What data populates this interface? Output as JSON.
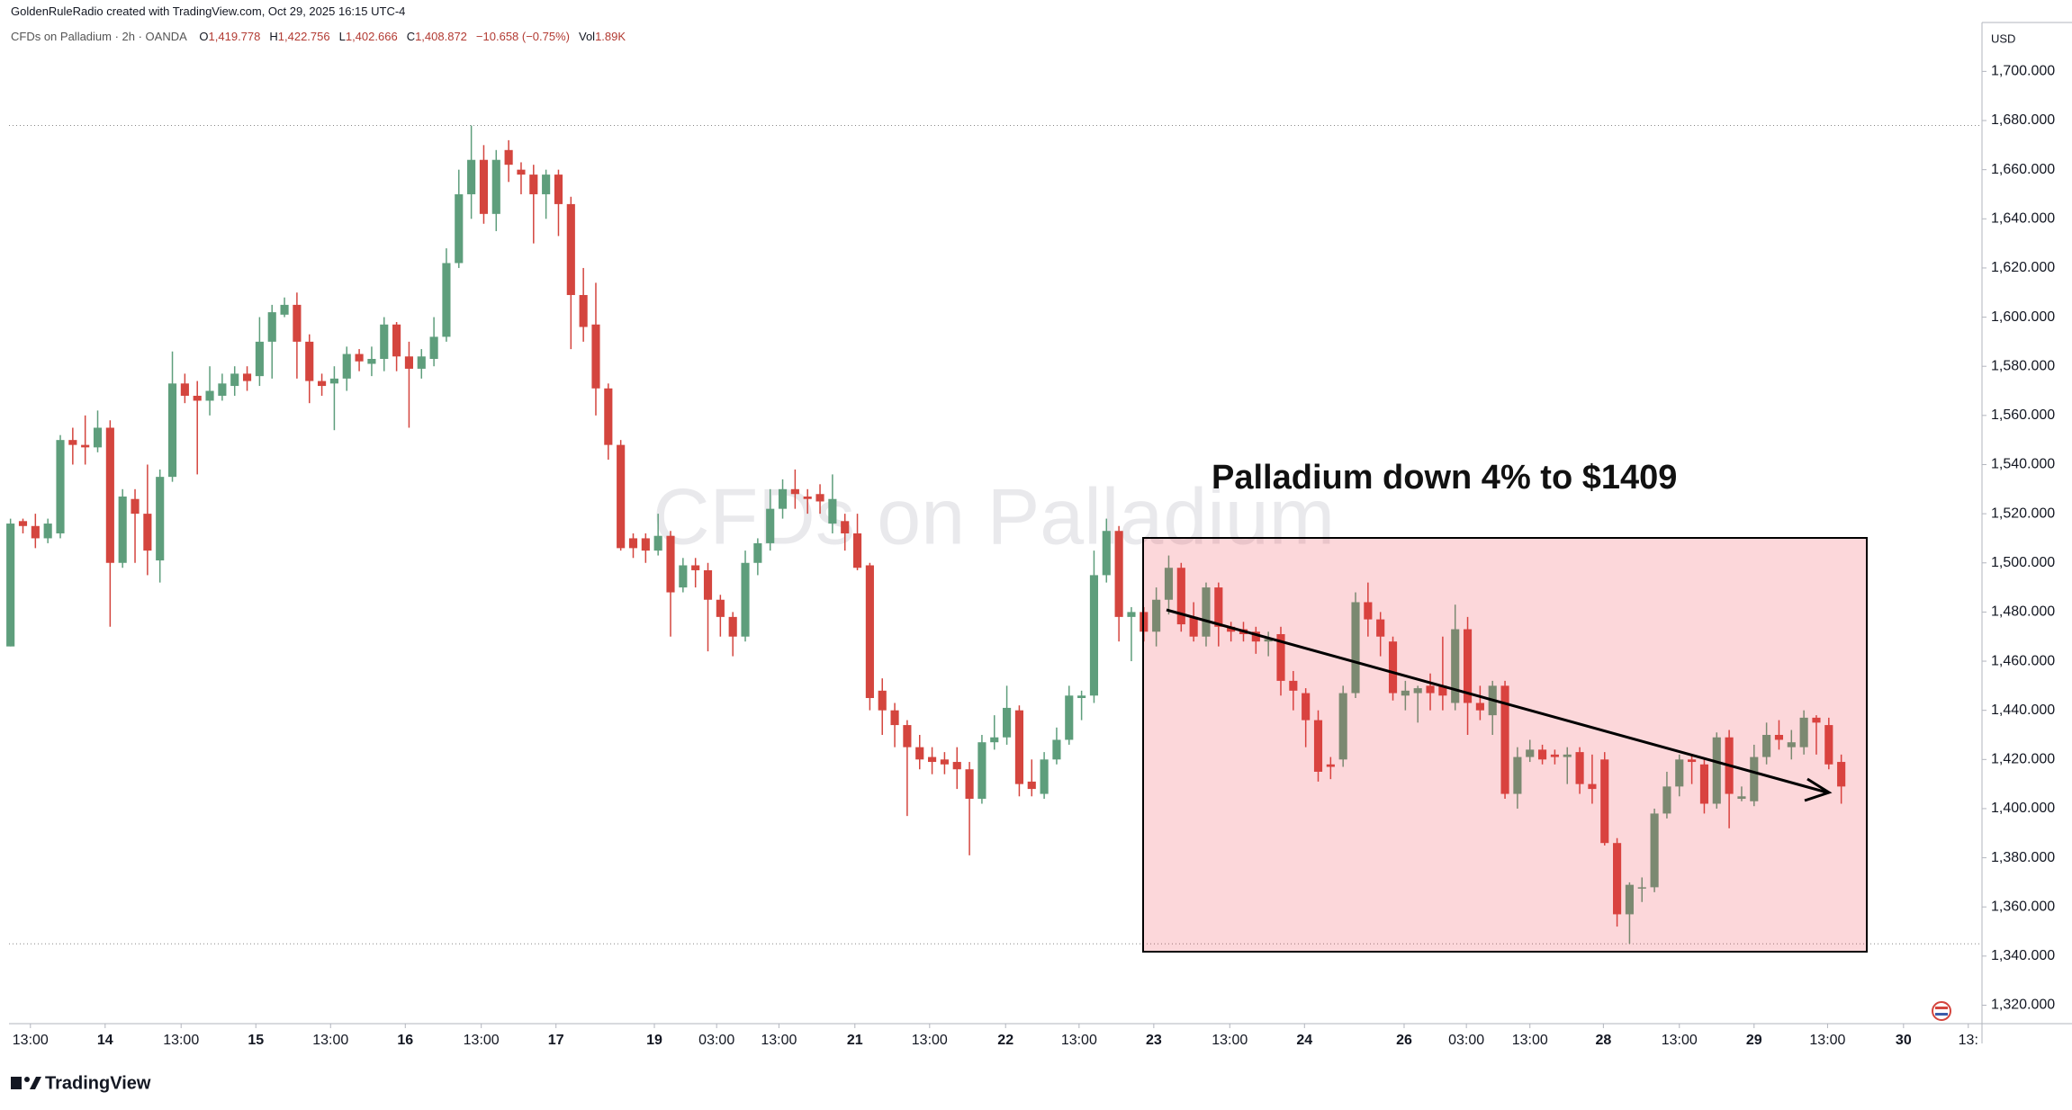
{
  "header": {
    "credit": "GoldenRuleRadio created with TradingView.com, Oct 29, 2025 16:15 UTC-4",
    "symbol": "CFDs on Palladium · 2h · OANDA",
    "ohlc": [
      {
        "key": "O",
        "value": "1,419.778"
      },
      {
        "key": "H",
        "value": "1,422.756"
      },
      {
        "key": "L",
        "value": "1,402.666"
      },
      {
        "key": "C",
        "value": "1,408.872"
      }
    ],
    "change": "−10.658 (−0.75%)",
    "volume_key": "Vol",
    "volume": "1.89K"
  },
  "watermark": "CFDs on Palladium",
  "annotation": "Palladium down 4% to $1409",
  "footer": {
    "brand": "TradingView"
  },
  "chart_data": {
    "type": "candlestick",
    "currency": "USD",
    "up_color": "#5e9e7c",
    "down_color": "#d4453e",
    "open": [
      1466,
      1517,
      1515,
      1510,
      1512,
      1550,
      1548,
      1547,
      1555,
      1500,
      1526,
      1520,
      1501,
      1535,
      1573,
      1568,
      1566,
      1568,
      1572,
      1577,
      1576,
      1590,
      1601,
      1605,
      1590,
      1574,
      1573,
      1575,
      1585,
      1581,
      1583,
      1597,
      1584,
      1579,
      1583,
      1592,
      1622,
      1650,
      1664,
      1642,
      1668,
      1660,
      1658,
      1650,
      1658,
      1646,
      1609,
      1597,
      1571,
      1548,
      1510,
      1510,
      1505,
      1511,
      1490,
      1499,
      1497,
      1485,
      1478,
      1470,
      1500,
      1508,
      1522,
      1530,
      1527,
      1528,
      1516,
      1517,
      1512,
      1499,
      1448,
      1440,
      1434,
      1425,
      1421,
      1420,
      1419,
      1416,
      1404,
      1427,
      1429,
      1440,
      1411,
      1406,
      1420,
      1428,
      1445,
      1446,
      1495,
      1513,
      1478,
      1480,
      1472,
      1485,
      1498,
      1478,
      1470,
      1490,
      1474,
      1473,
      1472,
      1468,
      1471,
      1452,
      1447,
      1436,
      1418,
      1420,
      1447,
      1484,
      1477,
      1468,
      1446,
      1447,
      1450,
      1450,
      1443,
      1473,
      1443,
      1438,
      1450,
      1406,
      1421,
      1424,
      1422,
      1421,
      1423,
      1410,
      1420,
      1386,
      1357,
      1368,
      1368,
      1398,
      1409,
      1420,
      1418,
      1402,
      1429,
      1404,
      1403,
      1421,
      1430,
      1425,
      1425,
      1437,
      1434,
      1419
    ],
    "high": [
      1518,
      1518,
      1520,
      1518,
      1552,
      1555,
      1560,
      1562,
      1558,
      1530,
      1530,
      1540,
      1538,
      1586,
      1577,
      1574,
      1580,
      1577,
      1580,
      1580,
      1600,
      1605,
      1608,
      1610,
      1593,
      1577,
      1580,
      1588,
      1587,
      1588,
      1600,
      1598,
      1590,
      1587,
      1600,
      1628,
      1660,
      1678,
      1670,
      1668,
      1672,
      1663,
      1662,
      1660,
      1660,
      1649,
      1620,
      1614,
      1573,
      1550,
      1512,
      1512,
      1520,
      1513,
      1502,
      1502,
      1500,
      1487,
      1480,
      1505,
      1510,
      1530,
      1534,
      1538,
      1530,
      1532,
      1536,
      1520,
      1520,
      1500,
      1453,
      1443,
      1436,
      1430,
      1425,
      1423,
      1425,
      1419,
      1430,
      1438,
      1450,
      1442,
      1420,
      1423,
      1433,
      1450,
      1448,
      1505,
      1518,
      1515,
      1482,
      1482,
      1490,
      1503,
      1500,
      1484,
      1492,
      1492,
      1476,
      1476,
      1474,
      1472,
      1474,
      1456,
      1449,
      1440,
      1421,
      1450,
      1488,
      1492,
      1480,
      1470,
      1452,
      1450,
      1455,
      1470,
      1483,
      1478,
      1450,
      1452,
      1452,
      1425,
      1428,
      1426,
      1424,
      1425,
      1425,
      1422,
      1423,
      1388,
      1370,
      1372,
      1400,
      1415,
      1422,
      1422,
      1420,
      1431,
      1432,
      1409,
      1426,
      1435,
      1436,
      1432,
      1440,
      1438,
      1437,
      1422
    ],
    "low": [
      1466,
      1512,
      1506,
      1508,
      1510,
      1540,
      1540,
      1545,
      1474,
      1498,
      1500,
      1495,
      1492,
      1533,
      1565,
      1536,
      1560,
      1566,
      1568,
      1570,
      1572,
      1575,
      1600,
      1575,
      1565,
      1568,
      1554,
      1570,
      1578,
      1576,
      1578,
      1578,
      1555,
      1575,
      1580,
      1590,
      1620,
      1640,
      1638,
      1635,
      1655,
      1650,
      1630,
      1640,
      1633,
      1587,
      1590,
      1560,
      1542,
      1505,
      1502,
      1500,
      1503,
      1470,
      1488,
      1490,
      1464,
      1470,
      1462,
      1468,
      1495,
      1505,
      1518,
      1522,
      1520,
      1520,
      1512,
      1505,
      1497,
      1440,
      1430,
      1425,
      1397,
      1416,
      1414,
      1414,
      1408,
      1381,
      1402,
      1424,
      1426,
      1405,
      1405,
      1404,
      1418,
      1426,
      1436,
      1443,
      1492,
      1468,
      1460,
      1468,
      1466,
      1479,
      1472,
      1468,
      1466,
      1466,
      1468,
      1468,
      1463,
      1462,
      1446,
      1440,
      1425,
      1411,
      1412,
      1417,
      1445,
      1470,
      1462,
      1444,
      1440,
      1435,
      1440,
      1440,
      1440,
      1430,
      1436,
      1430,
      1404,
      1400,
      1419,
      1418,
      1418,
      1410,
      1406,
      1402,
      1385,
      1352,
      1345,
      1362,
      1366,
      1396,
      1405,
      1410,
      1398,
      1400,
      1392,
      1403,
      1401,
      1418,
      1424,
      1420,
      1422,
      1422,
      1416,
      1402
    ],
    "close": [
      1516,
      1515,
      1510,
      1516,
      1550,
      1548,
      1547,
      1555,
      1500,
      1527,
      1520,
      1505,
      1535,
      1573,
      1568,
      1566,
      1570,
      1573,
      1577,
      1574,
      1590,
      1602,
      1605,
      1590,
      1574,
      1572,
      1575,
      1585,
      1582,
      1583,
      1597,
      1584,
      1579,
      1584,
      1592,
      1622,
      1650,
      1664,
      1642,
      1664,
      1662,
      1658,
      1650,
      1658,
      1646,
      1609,
      1596,
      1571,
      1548,
      1506,
      1506,
      1505,
      1511,
      1488,
      1499,
      1497,
      1485,
      1478,
      1470,
      1500,
      1508,
      1522,
      1530,
      1528,
      1526,
      1525,
      1526,
      1512,
      1498,
      1445,
      1440,
      1434,
      1425,
      1420,
      1419,
      1418,
      1416,
      1404,
      1427,
      1429,
      1441,
      1410,
      1408,
      1420,
      1428,
      1446,
      1446,
      1495,
      1513,
      1478,
      1480,
      1472,
      1485,
      1498,
      1475,
      1470,
      1490,
      1474,
      1472,
      1471,
      1468,
      1469,
      1452,
      1448,
      1436,
      1415,
      1417,
      1447,
      1484,
      1477,
      1470,
      1447,
      1448,
      1449,
      1447,
      1446,
      1473,
      1443,
      1440,
      1450,
      1406,
      1421,
      1424,
      1420,
      1421,
      1422,
      1410,
      1408,
      1386,
      1357,
      1369,
      1368,
      1398,
      1409,
      1420,
      1419,
      1402,
      1429,
      1406,
      1405,
      1421,
      1430,
      1428,
      1427,
      1437,
      1435,
      1418,
      1409
    ],
    "xlim": [
      -0.12,
      158.3
    ],
    "xticks": [
      {
        "value": 1.6,
        "label": "13:00"
      },
      {
        "value": 7.6,
        "label": "14"
      },
      {
        "value": 13.7,
        "label": "13:00"
      },
      {
        "value": 19.7,
        "label": "15"
      },
      {
        "value": 25.7,
        "label": "13:00"
      },
      {
        "value": 31.7,
        "label": "16"
      },
      {
        "value": 37.8,
        "label": "13:00"
      },
      {
        "value": 43.8,
        "label": "17"
      },
      {
        "value": 51.7,
        "label": "19"
      },
      {
        "value": 56.7,
        "label": "03:00"
      },
      {
        "value": 61.7,
        "label": "13:00"
      },
      {
        "value": 67.8,
        "label": "21"
      },
      {
        "value": 73.8,
        "label": "13:00"
      },
      {
        "value": 79.9,
        "label": "22"
      },
      {
        "value": 85.8,
        "label": "13:00"
      },
      {
        "value": 91.8,
        "label": "23"
      },
      {
        "value": 97.9,
        "label": "13:00"
      },
      {
        "value": 103.9,
        "label": "24"
      },
      {
        "value": 111.9,
        "label": "26"
      },
      {
        "value": 116.9,
        "label": "03:00"
      },
      {
        "value": 122.0,
        "label": "13:00"
      },
      {
        "value": 127.9,
        "label": "28"
      },
      {
        "value": 134.0,
        "label": "13:00"
      },
      {
        "value": 140.0,
        "label": "29"
      },
      {
        "value": 145.9,
        "label": "13:00"
      },
      {
        "value": 152.0,
        "label": "30"
      },
      {
        "value": 157.2,
        "label": "13:"
      }
    ],
    "ylim": [
      1312.5,
      1719.9
    ],
    "yticks": [
      {
        "value": 1320,
        "label": "1,320.000"
      },
      {
        "value": 1340,
        "label": "1,340.000"
      },
      {
        "value": 1360,
        "label": "1,360.000"
      },
      {
        "value": 1380,
        "label": "1,380.000"
      },
      {
        "value": 1400,
        "label": "1,400.000"
      },
      {
        "value": 1420,
        "label": "1,420.000"
      },
      {
        "value": 1440,
        "label": "1,440.000"
      },
      {
        "value": 1460,
        "label": "1,460.000"
      },
      {
        "value": 1480,
        "label": "1,480.000"
      },
      {
        "value": 1500,
        "label": "1,500.000"
      },
      {
        "value": 1520,
        "label": "1,520.000"
      },
      {
        "value": 1540,
        "label": "1,540.000"
      },
      {
        "value": 1560,
        "label": "1,560.000"
      },
      {
        "value": 1580,
        "label": "1,580.000"
      },
      {
        "value": 1600,
        "label": "1,600.000"
      },
      {
        "value": 1620,
        "label": "1,620.000"
      },
      {
        "value": 1640,
        "label": "1,640.000"
      },
      {
        "value": 1660,
        "label": "1,660.000"
      },
      {
        "value": 1680,
        "label": "1,680.000"
      },
      {
        "value": 1700,
        "label": "1,700.000"
      }
    ]
  }
}
